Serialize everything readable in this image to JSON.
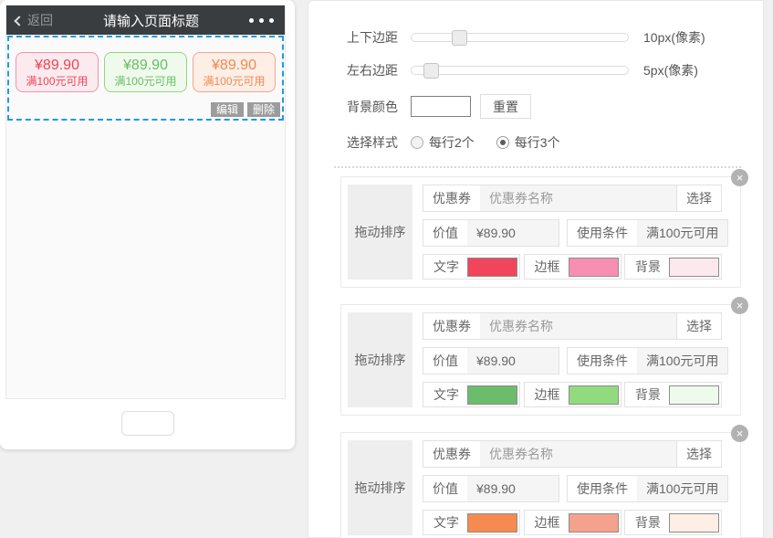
{
  "phone": {
    "navbar": {
      "back_label": "返回",
      "title": "请输入页面标题"
    },
    "coupons": [
      {
        "price": "¥89.90",
        "condition": "满100元可用",
        "text_color": "#ef4358",
        "border_color": "#f590ae",
        "bg_color": "#fcebee"
      },
      {
        "price": "¥89.90",
        "condition": "满100元可用",
        "text_color": "#68bd67",
        "border_color": "#8fd97f",
        "bg_color": "#effaec"
      },
      {
        "price": "¥89.90",
        "condition": "满100元可用",
        "text_color": "#f08a52",
        "border_color": "#f5a58c",
        "bg_color": "#fdeee6"
      }
    ],
    "widget_actions": {
      "edit_label": "编辑",
      "delete_label": "删除"
    }
  },
  "settings": {
    "margin_v": {
      "label": "上下边距",
      "value": "10px(像素)",
      "thumb_left": "22%"
    },
    "margin_h": {
      "label": "左右边距",
      "value": "5px(像素)",
      "thumb_left": "9%"
    },
    "bg_color": {
      "label": "背景颜色",
      "value": "",
      "reset_label": "重置"
    },
    "style": {
      "label": "选择样式",
      "options": [
        {
          "label": "每行2个",
          "selected": false
        },
        {
          "label": "每行3个",
          "selected": true
        }
      ]
    },
    "cards": [
      {
        "drag_label": "拖动排序",
        "coupon_label": "优惠券",
        "coupon_name_placeholder": "优惠券名称",
        "select_label": "选择",
        "value_label": "价值",
        "value": "¥89.90",
        "condition_label": "使用条件",
        "condition": "满100元可用",
        "close_icon": "×",
        "text_label": "文字",
        "text_color": "#f0455a",
        "border_label": "边框",
        "border_color": "#f78fb2",
        "bg_label": "背景",
        "bg_color": "#fce9ee"
      },
      {
        "drag_label": "拖动排序",
        "coupon_label": "优惠券",
        "coupon_name_placeholder": "优惠券名称",
        "select_label": "选择",
        "value_label": "价值",
        "value": "¥89.90",
        "condition_label": "使用条件",
        "condition": "满100元可用",
        "close_icon": "×",
        "text_label": "文字",
        "text_color": "#6cbd6b",
        "border_label": "边框",
        "border_color": "#92da7e",
        "bg_label": "背景",
        "bg_color": "#eefaec"
      },
      {
        "drag_label": "拖动排序",
        "coupon_label": "优惠券",
        "coupon_name_placeholder": "优惠券名称",
        "select_label": "选择",
        "value_label": "价值",
        "value": "¥89.90",
        "condition_label": "使用条件",
        "condition": "满100元可用",
        "close_icon": "×",
        "text_label": "文字",
        "text_color": "#f58b50",
        "border_label": "边框",
        "border_color": "#f4a28b",
        "bg_label": "背景",
        "bg_color": "#fdeee6"
      }
    ]
  }
}
